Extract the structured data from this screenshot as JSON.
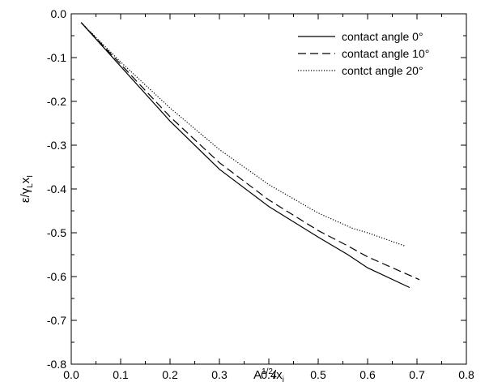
{
  "chart_data": {
    "type": "line",
    "xlabel": {
      "main": "A",
      "sup": "1/2",
      "mid": "/x",
      "sub": "i"
    },
    "ylabel": {
      "main": "ε/γ",
      "sub1": "L",
      "mid": "x",
      "sub2": "I"
    },
    "xlim": [
      0.0,
      0.8
    ],
    "ylim": [
      -0.8,
      0.0
    ],
    "xticks": [
      "0.0",
      "0.1",
      "0.2",
      "0.3",
      "0.4",
      "0.5",
      "0.6",
      "0.7",
      "0.8"
    ],
    "yticks": [
      "0.0",
      "-0.1",
      "-0.2",
      "-0.3",
      "-0.4",
      "-0.5",
      "-0.6",
      "-0.7",
      "-0.8"
    ],
    "grid": false,
    "legend_position": "top-right",
    "series": [
      {
        "name": "contact angle 0°",
        "style": "solid",
        "x": [
          0.02,
          0.1,
          0.2,
          0.3,
          0.4,
          0.5,
          0.56,
          0.6,
          0.685
        ],
        "y": [
          -0.02,
          -0.12,
          -0.245,
          -0.355,
          -0.44,
          -0.51,
          -0.55,
          -0.58,
          -0.625
        ]
      },
      {
        "name": "contact angle 10°",
        "style": "dashed",
        "x": [
          0.02,
          0.1,
          0.2,
          0.3,
          0.4,
          0.5,
          0.56,
          0.6,
          0.705
        ],
        "y": [
          -0.02,
          -0.115,
          -0.235,
          -0.34,
          -0.425,
          -0.495,
          -0.53,
          -0.555,
          -0.607
        ]
      },
      {
        "name": "contct angle 20°",
        "style": "dotted",
        "x": [
          0.02,
          0.1,
          0.2,
          0.3,
          0.4,
          0.5,
          0.57,
          0.6,
          0.675
        ],
        "y": [
          -0.02,
          -0.11,
          -0.215,
          -0.31,
          -0.39,
          -0.455,
          -0.49,
          -0.5,
          -0.53
        ]
      }
    ]
  }
}
